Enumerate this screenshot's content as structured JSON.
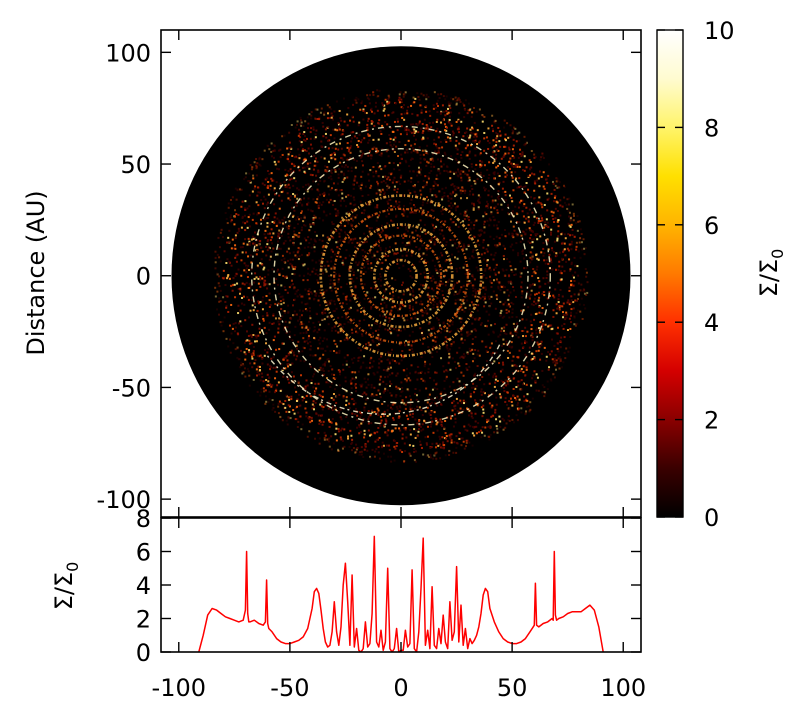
{
  "chart_data": [
    {
      "type": "heatmap",
      "title": "",
      "xlabel": "",
      "ylabel": "Distance (AU)",
      "xlim": [
        -108,
        108
      ],
      "ylim": [
        -108,
        110
      ],
      "xticks": [
        -100,
        -50,
        0,
        50,
        100
      ],
      "yticks": [
        -100,
        -50,
        0,
        50,
        100
      ],
      "ytick_labels": [
        "-100",
        "-50",
        "0",
        "50",
        "100"
      ],
      "colorbar": {
        "label_main": "Σ/Σ",
        "label_sub": "0",
        "range": [
          0,
          10
        ],
        "ticks": [
          0,
          2,
          4,
          6,
          8,
          10
        ],
        "tick_labels": [
          "0",
          "2",
          "4",
          "6",
          "8",
          "10"
        ],
        "colors": [
          "#000000",
          "#3a0000",
          "#8a0000",
          "#d40000",
          "#ff3000",
          "#ff7a00",
          "#ffb400",
          "#ffe000",
          "#fff46a",
          "#fffbd0",
          "#ffffff"
        ]
      },
      "disk": {
        "outer_radius": 103,
        "inner_radius": 2,
        "background_color": "#000000",
        "dust_outer_radius": 84,
        "grainy_band_inner": 60,
        "grainy_band_outer": 84,
        "rings": [
          {
            "radius": 7,
            "brightness": "bright"
          },
          {
            "radius": 12,
            "brightness": "bright"
          },
          {
            "radius": 18,
            "brightness": "medium"
          },
          {
            "radius": 23,
            "brightness": "bright"
          },
          {
            "radius": 30,
            "brightness": "medium"
          },
          {
            "radius": 36,
            "brightness": "bright"
          },
          {
            "radius": 57,
            "brightness": "thin"
          },
          {
            "radius": 67,
            "brightness": "thin"
          }
        ],
        "spiral_arm": {
          "from_radius": 54,
          "to_radius": 70
        }
      }
    },
    {
      "type": "line",
      "title": "",
      "xlabel": "",
      "ylabel_main": "Σ/Σ",
      "ylabel_sub": "0",
      "xlim": [
        -108,
        108
      ],
      "ylim": [
        0,
        8
      ],
      "xticks": [
        -100,
        -50,
        0,
        50,
        100
      ],
      "xtick_labels": [
        "-100",
        "-50",
        "0",
        "50",
        "100"
      ],
      "yticks": [
        0,
        2,
        4,
        6,
        8
      ],
      "ytick_labels": [
        "0",
        "2",
        "4",
        "6",
        "8"
      ],
      "line_color": "#ff0000",
      "series": [
        {
          "x": [
            -91,
            -89,
            -87,
            -85,
            -83,
            -81,
            -79,
            -77,
            -75,
            -73,
            -71,
            -70,
            -69.5,
            -69,
            -68.5,
            -68,
            -66,
            -64,
            -62,
            -61,
            -60.5,
            -60,
            -59.5,
            -58,
            -56,
            -54,
            -52,
            -50,
            -48,
            -46,
            -44,
            -42,
            -40,
            -39,
            -38,
            -37,
            -36,
            -35,
            -34,
            -33,
            -32,
            -31,
            -30,
            -29,
            -28,
            -27,
            -26,
            -25,
            -24,
            -23,
            -22,
            -21,
            -20,
            -19,
            -18,
            -17,
            -16,
            -15,
            -14,
            -13,
            -12,
            -11,
            -10,
            -9,
            -8,
            -7,
            -6,
            -5,
            -4,
            -3,
            -2,
            -1,
            0,
            1,
            2,
            3,
            4,
            5,
            6,
            7,
            8,
            9,
            10,
            11,
            12,
            13,
            14,
            15,
            16,
            17,
            18,
            19,
            20,
            21,
            22,
            23,
            24,
            25,
            26,
            27,
            28,
            29,
            30,
            31,
            32,
            33,
            34,
            35,
            36,
            37,
            38,
            39,
            40,
            42,
            44,
            46,
            48,
            50,
            52,
            54,
            56,
            58,
            59.5,
            60,
            60.5,
            61,
            62,
            64,
            66,
            68,
            68.5,
            69,
            69.5,
            70,
            71,
            73,
            75,
            77,
            79,
            81,
            83,
            85,
            87,
            89,
            91
          ],
          "y": [
            0,
            1.0,
            2.2,
            2.6,
            2.5,
            2.3,
            2.1,
            2.0,
            1.9,
            1.8,
            1.9,
            2.5,
            6.0,
            2.3,
            1.8,
            1.8,
            1.9,
            1.7,
            1.6,
            1.8,
            4.3,
            1.7,
            1.4,
            1.2,
            0.8,
            0.6,
            0.5,
            0.5,
            0.6,
            0.7,
            0.9,
            1.4,
            2.6,
            3.6,
            3.8,
            3.5,
            2.5,
            1.4,
            0.6,
            0.3,
            0.4,
            1.2,
            3.0,
            1.2,
            0.4,
            1.5,
            4.0,
            5.3,
            3.0,
            0.4,
            4.6,
            0.3,
            1.4,
            0.1,
            0,
            0.2,
            1.8,
            0.3,
            0.5,
            2.3,
            6.9,
            0.6,
            0.3,
            1.3,
            0.1,
            0.6,
            5.0,
            0.2,
            0,
            0.2,
            1.4,
            0,
            0.1,
            0.1,
            1.3,
            0.3,
            0.5,
            4.9,
            0.2,
            0,
            1.2,
            3.8,
            6.8,
            0.4,
            1.3,
            0.2,
            3.9,
            0.4,
            0.2,
            1.4,
            0.5,
            2.2,
            0.6,
            0.2,
            3.0,
            0.7,
            1.2,
            5.1,
            0.6,
            2.8,
            0.4,
            1.4,
            0.2,
            0.8,
            0.5,
            0.7,
            1.0,
            1.5,
            2.3,
            3.4,
            3.8,
            3.6,
            2.6,
            1.8,
            1.2,
            0.8,
            0.6,
            0.5,
            0.5,
            0.6,
            0.8,
            1.2,
            1.5,
            1.6,
            4.1,
            1.6,
            1.5,
            1.7,
            1.8,
            2.0,
            1.9,
            6.0,
            2.2,
            1.9,
            2.0,
            2.1,
            2.3,
            2.4,
            2.4,
            2.4,
            2.6,
            2.8,
            2.5,
            1.5,
            0
          ]
        }
      ]
    }
  ]
}
